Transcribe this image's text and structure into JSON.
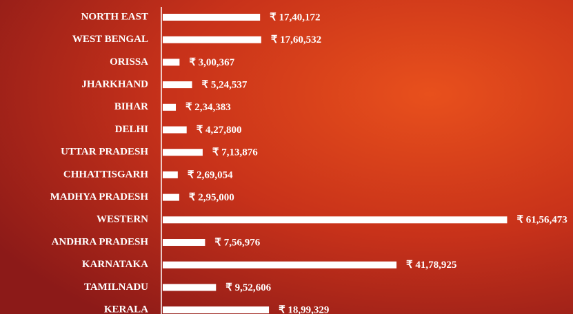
{
  "chart_data": {
    "type": "barh",
    "categories": [
      "NORTH EAST",
      "WEST BENGAL",
      "ORISSA",
      "JHARKHAND",
      "BIHAR",
      "DELHI",
      "UTTAR PRADESH",
      "CHHATTISGARH",
      "MADHYA PRADESH",
      "WESTERN",
      "ANDHRA PRADESH",
      "KARNATAKA",
      "TAMILNADU",
      "KERALA"
    ],
    "values": [
      1740172,
      1760532,
      300367,
      524537,
      234383,
      427800,
      713876,
      269054,
      295000,
      6156473,
      756976,
      4178925,
      952606,
      1899329
    ],
    "value_labels": [
      "₹ 17,40,172",
      "₹ 17,60,532",
      "₹ 3,00,367",
      "₹ 5,24,537",
      "₹ 2,34,383",
      "₹ 4,27,800",
      "₹ 7,13,876",
      "₹ 2,69,054",
      "₹ 2,95,000",
      "₹ 61,56,473",
      "₹ 7,56,976",
      "₹ 41,78,925",
      "₹ 9,52,606",
      "₹ 18,99,329"
    ],
    "color": "#ffffff",
    "xlim": [
      0,
      6200000
    ]
  }
}
